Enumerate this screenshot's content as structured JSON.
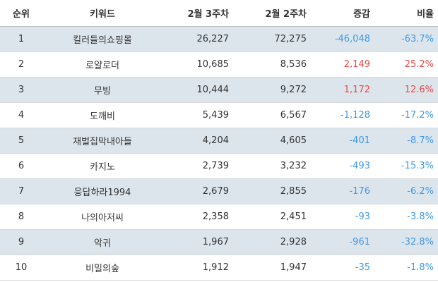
{
  "headers": {
    "rank": "순위",
    "keyword": "키워드",
    "week3": "2월 3주차",
    "week2": "2월 2주차",
    "change": "증감",
    "ratio": "비율"
  },
  "colors": {
    "header_bg": "#ffffff",
    "row_shade": "#dde5ec",
    "negative": "#3d9ae8",
    "positive": "#e84a4a"
  },
  "rows": [
    {
      "rank": "1",
      "keyword": "킬러들의쇼핑몰",
      "week3": "26,227",
      "week2": "72,275",
      "change": "-46,048",
      "ratio": "-63.7%",
      "trend": "negative"
    },
    {
      "rank": "2",
      "keyword": "로얄로더",
      "week3": "10,685",
      "week2": "8,536",
      "change": "2,149",
      "ratio": "25.2%",
      "trend": "positive"
    },
    {
      "rank": "3",
      "keyword": "무빙",
      "week3": "10,444",
      "week2": "9,272",
      "change": "1,172",
      "ratio": "12.6%",
      "trend": "positive"
    },
    {
      "rank": "4",
      "keyword": "도깨비",
      "week3": "5,439",
      "week2": "6,567",
      "change": "-1,128",
      "ratio": "-17.2%",
      "trend": "negative"
    },
    {
      "rank": "5",
      "keyword": "재벌집막내아들",
      "week3": "4,204",
      "week2": "4,605",
      "change": "-401",
      "ratio": "-8.7%",
      "trend": "negative"
    },
    {
      "rank": "6",
      "keyword": "카지노",
      "week3": "2,739",
      "week2": "3,232",
      "change": "-493",
      "ratio": "-15.3%",
      "trend": "negative"
    },
    {
      "rank": "7",
      "keyword": "응답하라1994",
      "week3": "2,679",
      "week2": "2,855",
      "change": "-176",
      "ratio": "-6.2%",
      "trend": "negative"
    },
    {
      "rank": "8",
      "keyword": "나의아저씨",
      "week3": "2,358",
      "week2": "2,451",
      "change": "-93",
      "ratio": "-3.8%",
      "trend": "negative"
    },
    {
      "rank": "9",
      "keyword": "악귀",
      "week3": "1,967",
      "week2": "2,928",
      "change": "-961",
      "ratio": "-32.8%",
      "trend": "negative"
    },
    {
      "rank": "10",
      "keyword": "비밀의숲",
      "week3": "1,912",
      "week2": "1,947",
      "change": "-35",
      "ratio": "-1.8%",
      "trend": "negative"
    }
  ]
}
